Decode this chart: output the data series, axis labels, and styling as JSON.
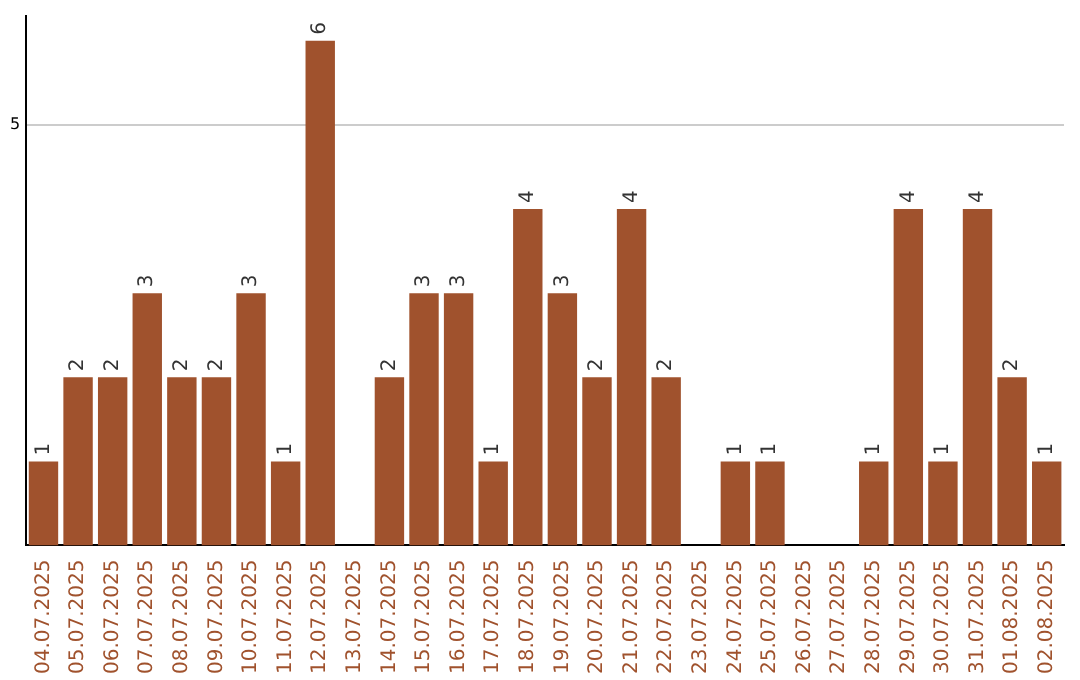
{
  "chart_data": {
    "type": "bar",
    "categories": [
      "04.07.2025",
      "05.07.2025",
      "06.07.2025",
      "07.07.2025",
      "08.07.2025",
      "09.07.2025",
      "10.07.2025",
      "11.07.2025",
      "12.07.2025",
      "13.07.2025",
      "14.07.2025",
      "15.07.2025",
      "16.07.2025",
      "17.07.2025",
      "18.07.2025",
      "19.07.2025",
      "20.07.2025",
      "21.07.2025",
      "22.07.2025",
      "23.07.2025",
      "24.07.2025",
      "25.07.2025",
      "26.07.2025",
      "27.07.2025",
      "28.07.2025",
      "29.07.2025",
      "30.07.2025",
      "31.07.2025",
      "01.08.2025",
      "02.08.2025"
    ],
    "values": [
      1,
      2,
      2,
      3,
      2,
      2,
      3,
      1,
      6,
      0,
      2,
      3,
      3,
      1,
      4,
      3,
      2,
      4,
      2,
      0,
      1,
      1,
      0,
      0,
      1,
      4,
      1,
      4,
      2,
      1
    ],
    "value_labels": [
      "1",
      "2",
      "2",
      "3",
      "2",
      "2",
      "3",
      "1",
      "6",
      null,
      "2",
      "3",
      "3",
      "1",
      "4",
      "3",
      "2",
      "4",
      "2",
      null,
      "1",
      "1",
      null,
      null,
      "1",
      "4",
      "1",
      "4",
      "2",
      "1"
    ],
    "color": "#a0522d",
    "ylim": [
      0,
      6.3
    ],
    "yticks": [
      5
    ],
    "grid": "y"
  }
}
